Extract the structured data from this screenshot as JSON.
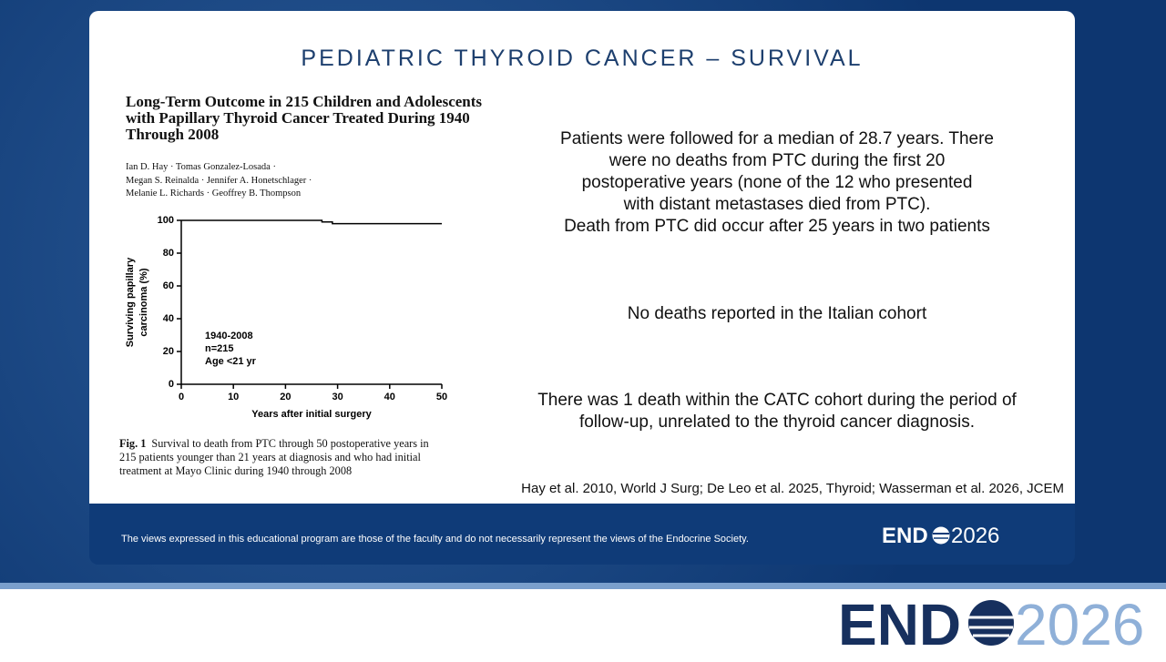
{
  "slide": {
    "title": "PEDIATRIC THYROID CANCER – SURVIVAL",
    "paragraphs": [
      [
        "Patients were followed for a median of 28.7 years. There",
        "were no deaths from PTC during the first 20",
        "postoperative years (none of the 12 who presented",
        "with distant metastases died from PTC).",
        "Death from PTC did occur after 25 years in two patients"
      ],
      [
        "No deaths reported in the Italian cohort"
      ],
      [
        "There was 1 death within the CATC cohort during the period of",
        "follow-up, unrelated to the thyroid cancer diagnosis."
      ]
    ],
    "citation": "Hay et al. 2010, World J Surg; De Leo et al. 2025, Thyroid; Wasserman et al. 2026, JCEM",
    "footer": "The views expressed in this educational program are those of the faculty and do not necessarily represent the views of the Endocrine Society.",
    "logo": {
      "left": "END",
      "right": "2026"
    }
  },
  "paper": {
    "title": [
      "Long-Term Outcome in 215 Children and Adolescents",
      "with Papillary Thyroid Cancer Treated During 1940",
      "Through 2008"
    ],
    "authors": [
      "Ian D. Hay · Tomas Gonzalez-Losada ·",
      "Megan S. Reinalda · Jennifer A. Honetschlager ·",
      "Melanie L. Richards · Geoffrey B. Thompson"
    ],
    "caption_label": "Fig. 1",
    "caption": [
      "Survival to death from PTC through 50 postoperative years in",
      "215 patients younger than 21 years at diagnosis and who had initial",
      "treatment at Mayo Clinic during 1940 through 2008"
    ]
  },
  "chart_data": {
    "type": "line",
    "xlabel": "Years after initial surgery",
    "ylabel": [
      "Surviving papillary",
      "carcinoma (%)"
    ],
    "annotations": [
      "1940-2008",
      "n=215",
      "Age <21 yr"
    ],
    "x": [
      0,
      27,
      27,
      29,
      29,
      50
    ],
    "values": [
      100,
      100,
      99,
      99,
      98,
      98
    ],
    "color": "#000000",
    "xlim": [
      0,
      50
    ],
    "ylim": [
      0,
      100
    ],
    "xticks": [
      0,
      10,
      20,
      30,
      40,
      50
    ],
    "yticks": [
      0,
      20,
      40,
      60,
      80,
      100
    ],
    "grid": false
  }
}
